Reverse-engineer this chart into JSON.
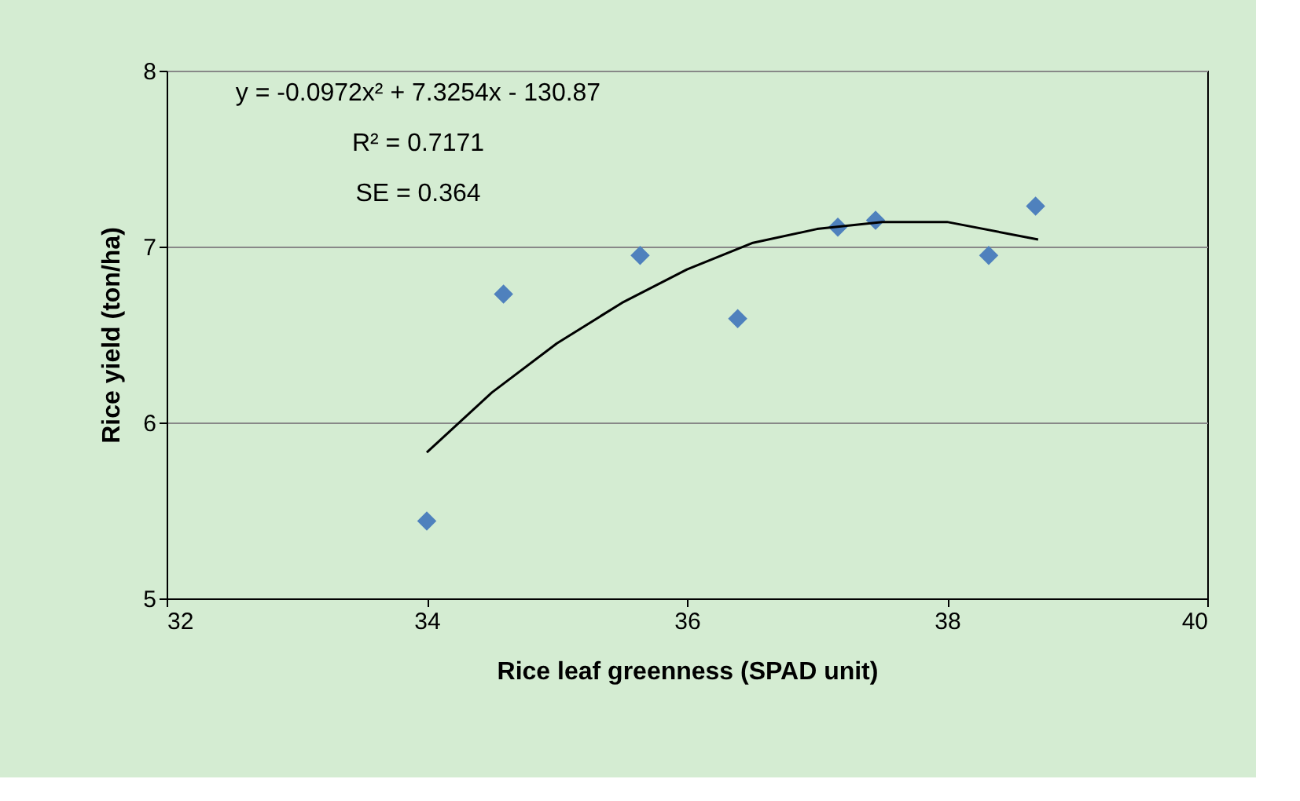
{
  "chart_data": {
    "type": "scatter",
    "xlabel": "Rice leaf greenness (SPAD unit)",
    "ylabel": "Rice yield (ton/ha)",
    "xlim": [
      32,
      40
    ],
    "xticks": [
      32,
      34,
      36,
      38,
      40
    ],
    "ylim": [
      5,
      8
    ],
    "yticks": [
      5,
      6,
      7,
      8
    ],
    "grid": "y",
    "marker": "diamond",
    "annotations": [
      "y = -0.0972x² + 7.3254x - 130.87",
      "R² = 0.7171",
      "SE = 0.364"
    ],
    "series": [
      {
        "color": "#4f81bd",
        "x": [
          34.0,
          34.59,
          35.64,
          36.39,
          37.16,
          37.45,
          38.32,
          38.68
        ],
        "values": [
          5.44,
          6.73,
          6.95,
          6.59,
          7.11,
          7.15,
          6.95,
          7.23
        ]
      },
      {
        "type": "line",
        "color": "#000000",
        "line_style": "solid",
        "marker": "none",
        "x": [
          34.0,
          34.5,
          35.0,
          35.5,
          36.0,
          36.5,
          37.0,
          37.5,
          38.0,
          38.7
        ],
        "values": [
          5.83,
          6.17,
          6.45,
          6.68,
          6.87,
          7.02,
          7.1,
          7.14,
          7.14,
          7.04
        ]
      }
    ]
  }
}
